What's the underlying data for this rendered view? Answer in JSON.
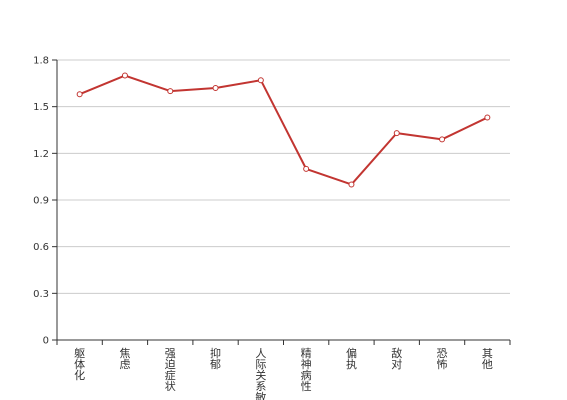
{
  "chart_data": {
    "type": "line",
    "categories": [
      "躯体化",
      "焦虑",
      "强迫症状",
      "抑郁",
      "人际关系敏感",
      "精神病性",
      "偏执",
      "敌对",
      "恐怖",
      "其他"
    ],
    "values": [
      1.58,
      1.7,
      1.6,
      1.62,
      1.67,
      1.1,
      1.0,
      1.33,
      1.29,
      1.43
    ],
    "ylim": [
      0,
      1.8
    ],
    "yticks": [
      "0",
      "0.3",
      "0.6",
      "0.9",
      "1.2",
      "1.5",
      "1.8"
    ],
    "grid": true,
    "legend": "none",
    "line_color": "#c23531",
    "marker_fill": "#ffffff"
  }
}
